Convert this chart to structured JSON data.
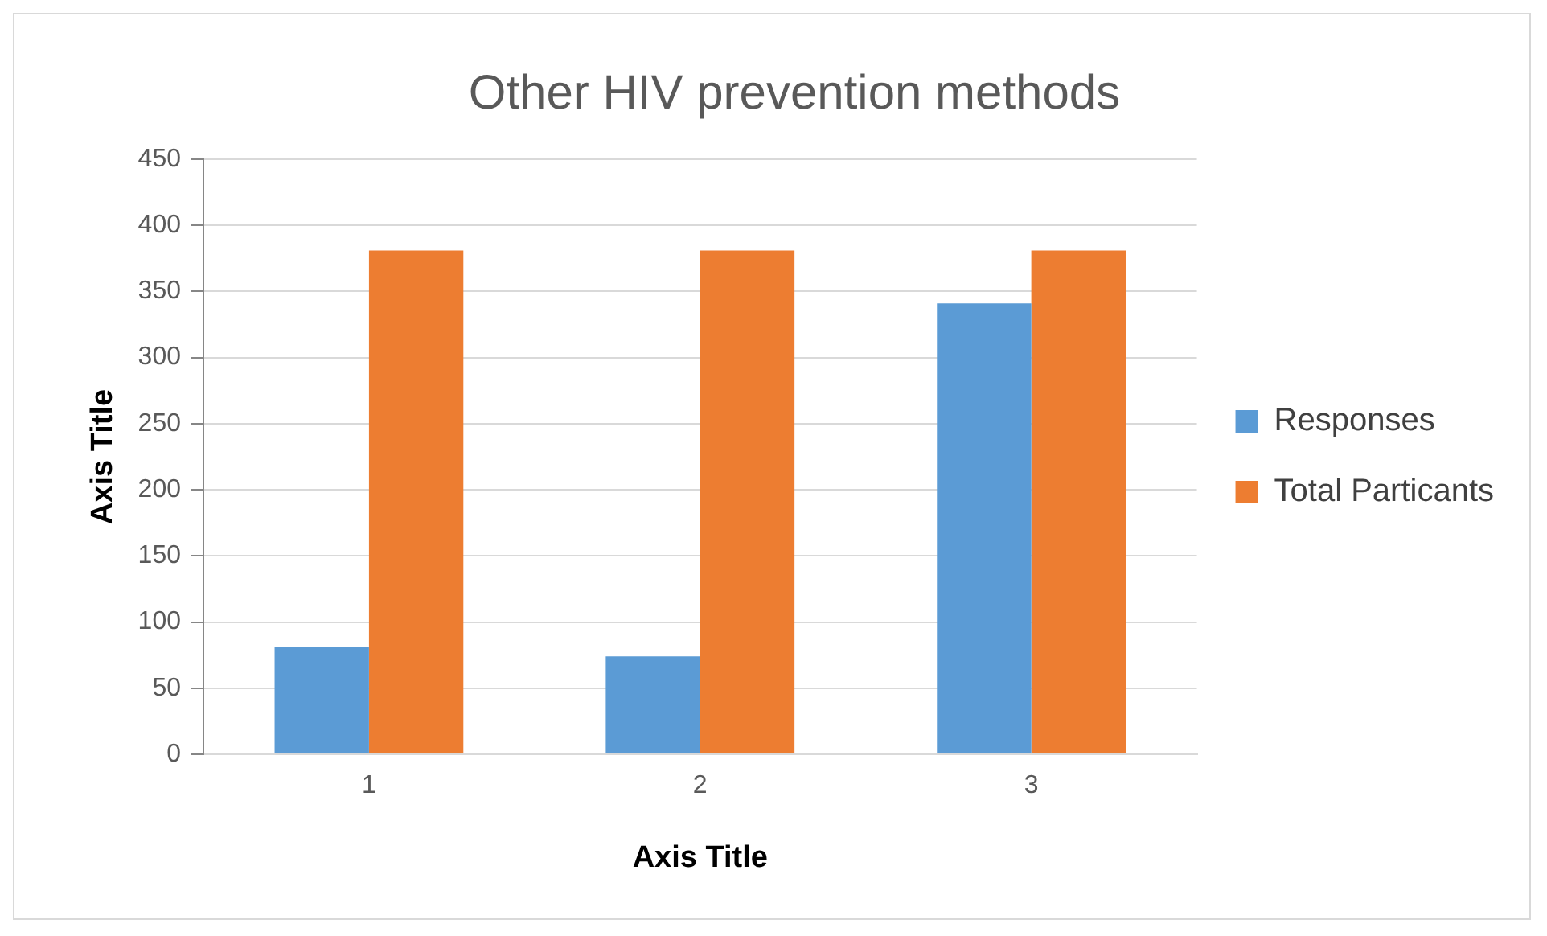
{
  "chart_data": {
    "type": "bar",
    "title": "Other HIV prevention methods",
    "xlabel": "Axis Title",
    "ylabel": "Axis Title",
    "categories": [
      "1",
      "2",
      "3"
    ],
    "series": [
      {
        "name": "Responses",
        "color": "#5b9bd5",
        "values": [
          81,
          74,
          341
        ]
      },
      {
        "name": "Total Particants",
        "color": "#ed7d31",
        "values": [
          381,
          381,
          381
        ]
      }
    ],
    "ylim": [
      0,
      450
    ],
    "yticks": [
      0,
      50,
      100,
      150,
      200,
      250,
      300,
      350,
      400,
      450
    ],
    "grid": "y",
    "legend": "right"
  }
}
